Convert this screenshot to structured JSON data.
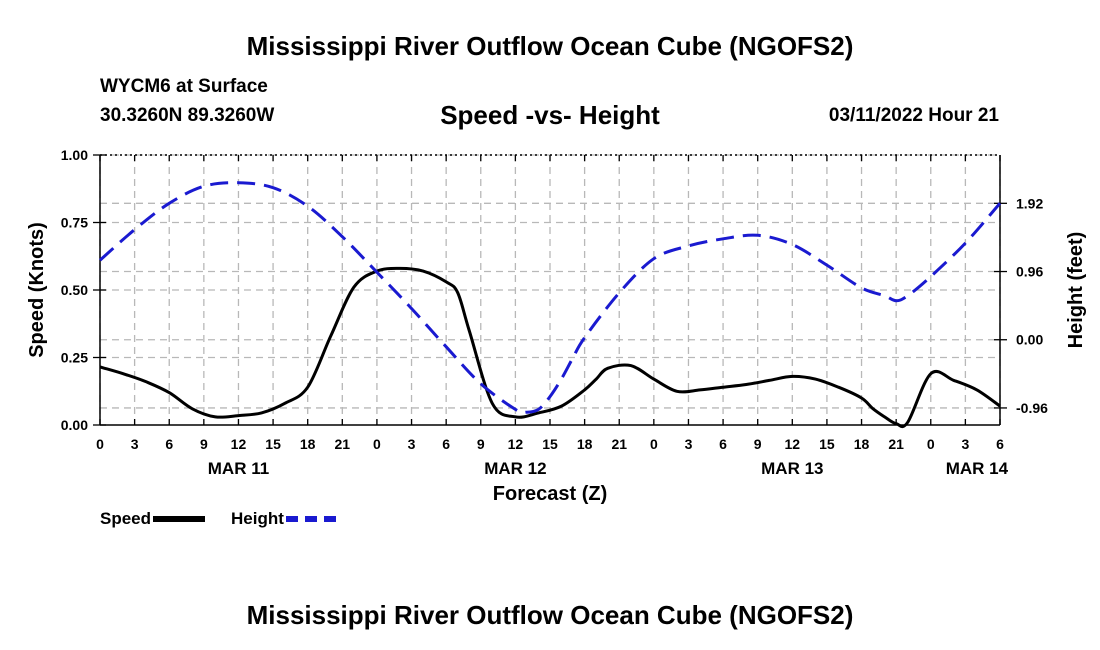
{
  "header": {
    "title": "Mississippi River Outflow Ocean Cube (NGOFS2)",
    "station": "WYCM6 at Surface",
    "coords": "30.3260N  89.3260W",
    "subtitle": "Speed -vs- Height",
    "datestamp": "03/11/2022 Hour 21"
  },
  "footer": {
    "title": "Mississippi River Outflow Ocean Cube (NGOFS2)"
  },
  "legend": {
    "speed_label": "Speed",
    "height_label": "Height"
  },
  "chart_data": {
    "type": "line",
    "title": "Speed -vs- Height",
    "xlabel": "Forecast (Z)",
    "ylabel": "Speed (Knots)",
    "y2label": "Height (feet)",
    "x_unit": "hours since MAR 11 00Z",
    "xlim": [
      0,
      78
    ],
    "ylim": [
      0,
      1.0
    ],
    "y2lim": [
      -1.2,
      2.6
    ],
    "x_ticks": [
      0,
      3,
      6,
      9,
      12,
      15,
      18,
      21,
      24,
      27,
      30,
      33,
      36,
      39,
      42,
      45,
      48,
      51,
      54,
      57,
      60,
      63,
      66,
      69,
      72,
      75,
      78
    ],
    "x_tick_labels": [
      "0",
      "3",
      "6",
      "9",
      "12",
      "15",
      "18",
      "21",
      "0",
      "3",
      "6",
      "9",
      "12",
      "15",
      "18",
      "21",
      "0",
      "3",
      "6",
      "9",
      "12",
      "15",
      "18",
      "21",
      "0",
      "3",
      "6"
    ],
    "date_labels": [
      {
        "x": 12,
        "label": "MAR 11"
      },
      {
        "x": 36,
        "label": "MAR 12"
      },
      {
        "x": 60,
        "label": "MAR 13"
      },
      {
        "x": 76,
        "label": "MAR 14"
      }
    ],
    "y_ticks": [
      0,
      0.25,
      0.5,
      0.75,
      1.0
    ],
    "y_tick_labels": [
      "0.00",
      "0.25",
      "0.50",
      "0.75",
      "1.00"
    ],
    "y2_ticks": [
      1.92,
      0.96,
      0.0,
      -0.96
    ],
    "y2_tick_labels": [
      "1.92",
      "0.96",
      "0.00",
      "-0.96"
    ],
    "series": [
      {
        "name": "Speed",
        "axis": "left",
        "color": "#000000",
        "style": "solid",
        "x": [
          0,
          2,
          4,
          6,
          8,
          10,
          12,
          14,
          16,
          18,
          20,
          22,
          24,
          26,
          28,
          30,
          31,
          32,
          34,
          36,
          38,
          40,
          42,
          43,
          44,
          46,
          48,
          50,
          52,
          54,
          56,
          58,
          60,
          62,
          64,
          66,
          67,
          68,
          69,
          70,
          72,
          74,
          76,
          78
        ],
        "values": [
          0.215,
          0.19,
          0.16,
          0.12,
          0.06,
          0.03,
          0.035,
          0.045,
          0.08,
          0.14,
          0.33,
          0.51,
          0.57,
          0.58,
          0.57,
          0.53,
          0.49,
          0.35,
          0.08,
          0.03,
          0.045,
          0.07,
          0.13,
          0.17,
          0.21,
          0.22,
          0.17,
          0.125,
          0.13,
          0.14,
          0.15,
          0.165,
          0.18,
          0.17,
          0.14,
          0.1,
          0.06,
          0.03,
          0.005,
          0.01,
          0.19,
          0.165,
          0.13,
          0.07
        ]
      },
      {
        "name": "Height",
        "axis": "right",
        "color": "#1a1ad0",
        "style": "dashed",
        "x": [
          0,
          3,
          6,
          9,
          12,
          15,
          18,
          21,
          24,
          27,
          30,
          33,
          36,
          37,
          38,
          39,
          40,
          41,
          42,
          45,
          48,
          51,
          54,
          57,
          60,
          63,
          66,
          68,
          69,
          70,
          72,
          75,
          78
        ],
        "values": [
          1.12,
          1.55,
          1.92,
          2.16,
          2.21,
          2.14,
          1.88,
          1.45,
          0.95,
          0.44,
          -0.1,
          -0.62,
          -0.98,
          -1.02,
          -0.98,
          -0.8,
          -0.55,
          -0.25,
          0.03,
          0.66,
          1.14,
          1.32,
          1.42,
          1.47,
          1.34,
          1.05,
          0.73,
          0.62,
          0.55,
          0.62,
          0.89,
          1.36,
          1.92
        ]
      }
    ]
  }
}
